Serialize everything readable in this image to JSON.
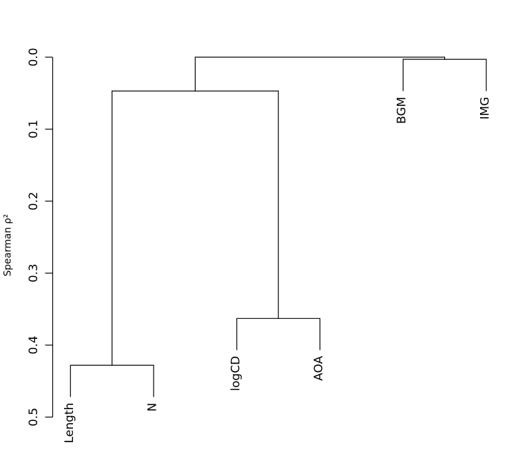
{
  "figure": {
    "background": "#ffffff",
    "line_color": "#000000",
    "text_color": "#000000"
  },
  "chart_data": {
    "type": "dendrogram",
    "orientation": "vertical",
    "ylabel": "Spearman ρ²",
    "ylim": [
      0.0,
      0.5
    ],
    "y_direction": "values-increase-downward",
    "yticks": [
      "0.0",
      "0.1",
      "0.2",
      "0.3",
      "0.4",
      "0.5"
    ],
    "ytick_values": [
      0.0,
      0.1,
      0.2,
      0.3,
      0.4,
      0.5
    ],
    "grid": false,
    "legend": false,
    "leaves": [
      "Length",
      "N",
      "logCD",
      "AOA",
      "BGM",
      "IMG"
    ],
    "merges": [
      {
        "children": [
          -1,
          -2
        ],
        "height": 0.428
      },
      {
        "children": [
          -3,
          -4
        ],
        "height": 0.363
      },
      {
        "children": [
          1,
          2
        ],
        "height": 0.047
      },
      {
        "children": [
          -5,
          -6
        ],
        "height": 0.003
      },
      {
        "children": [
          3,
          4
        ],
        "height": 0.0
      }
    ],
    "leaf_hang": 0.0435
  }
}
